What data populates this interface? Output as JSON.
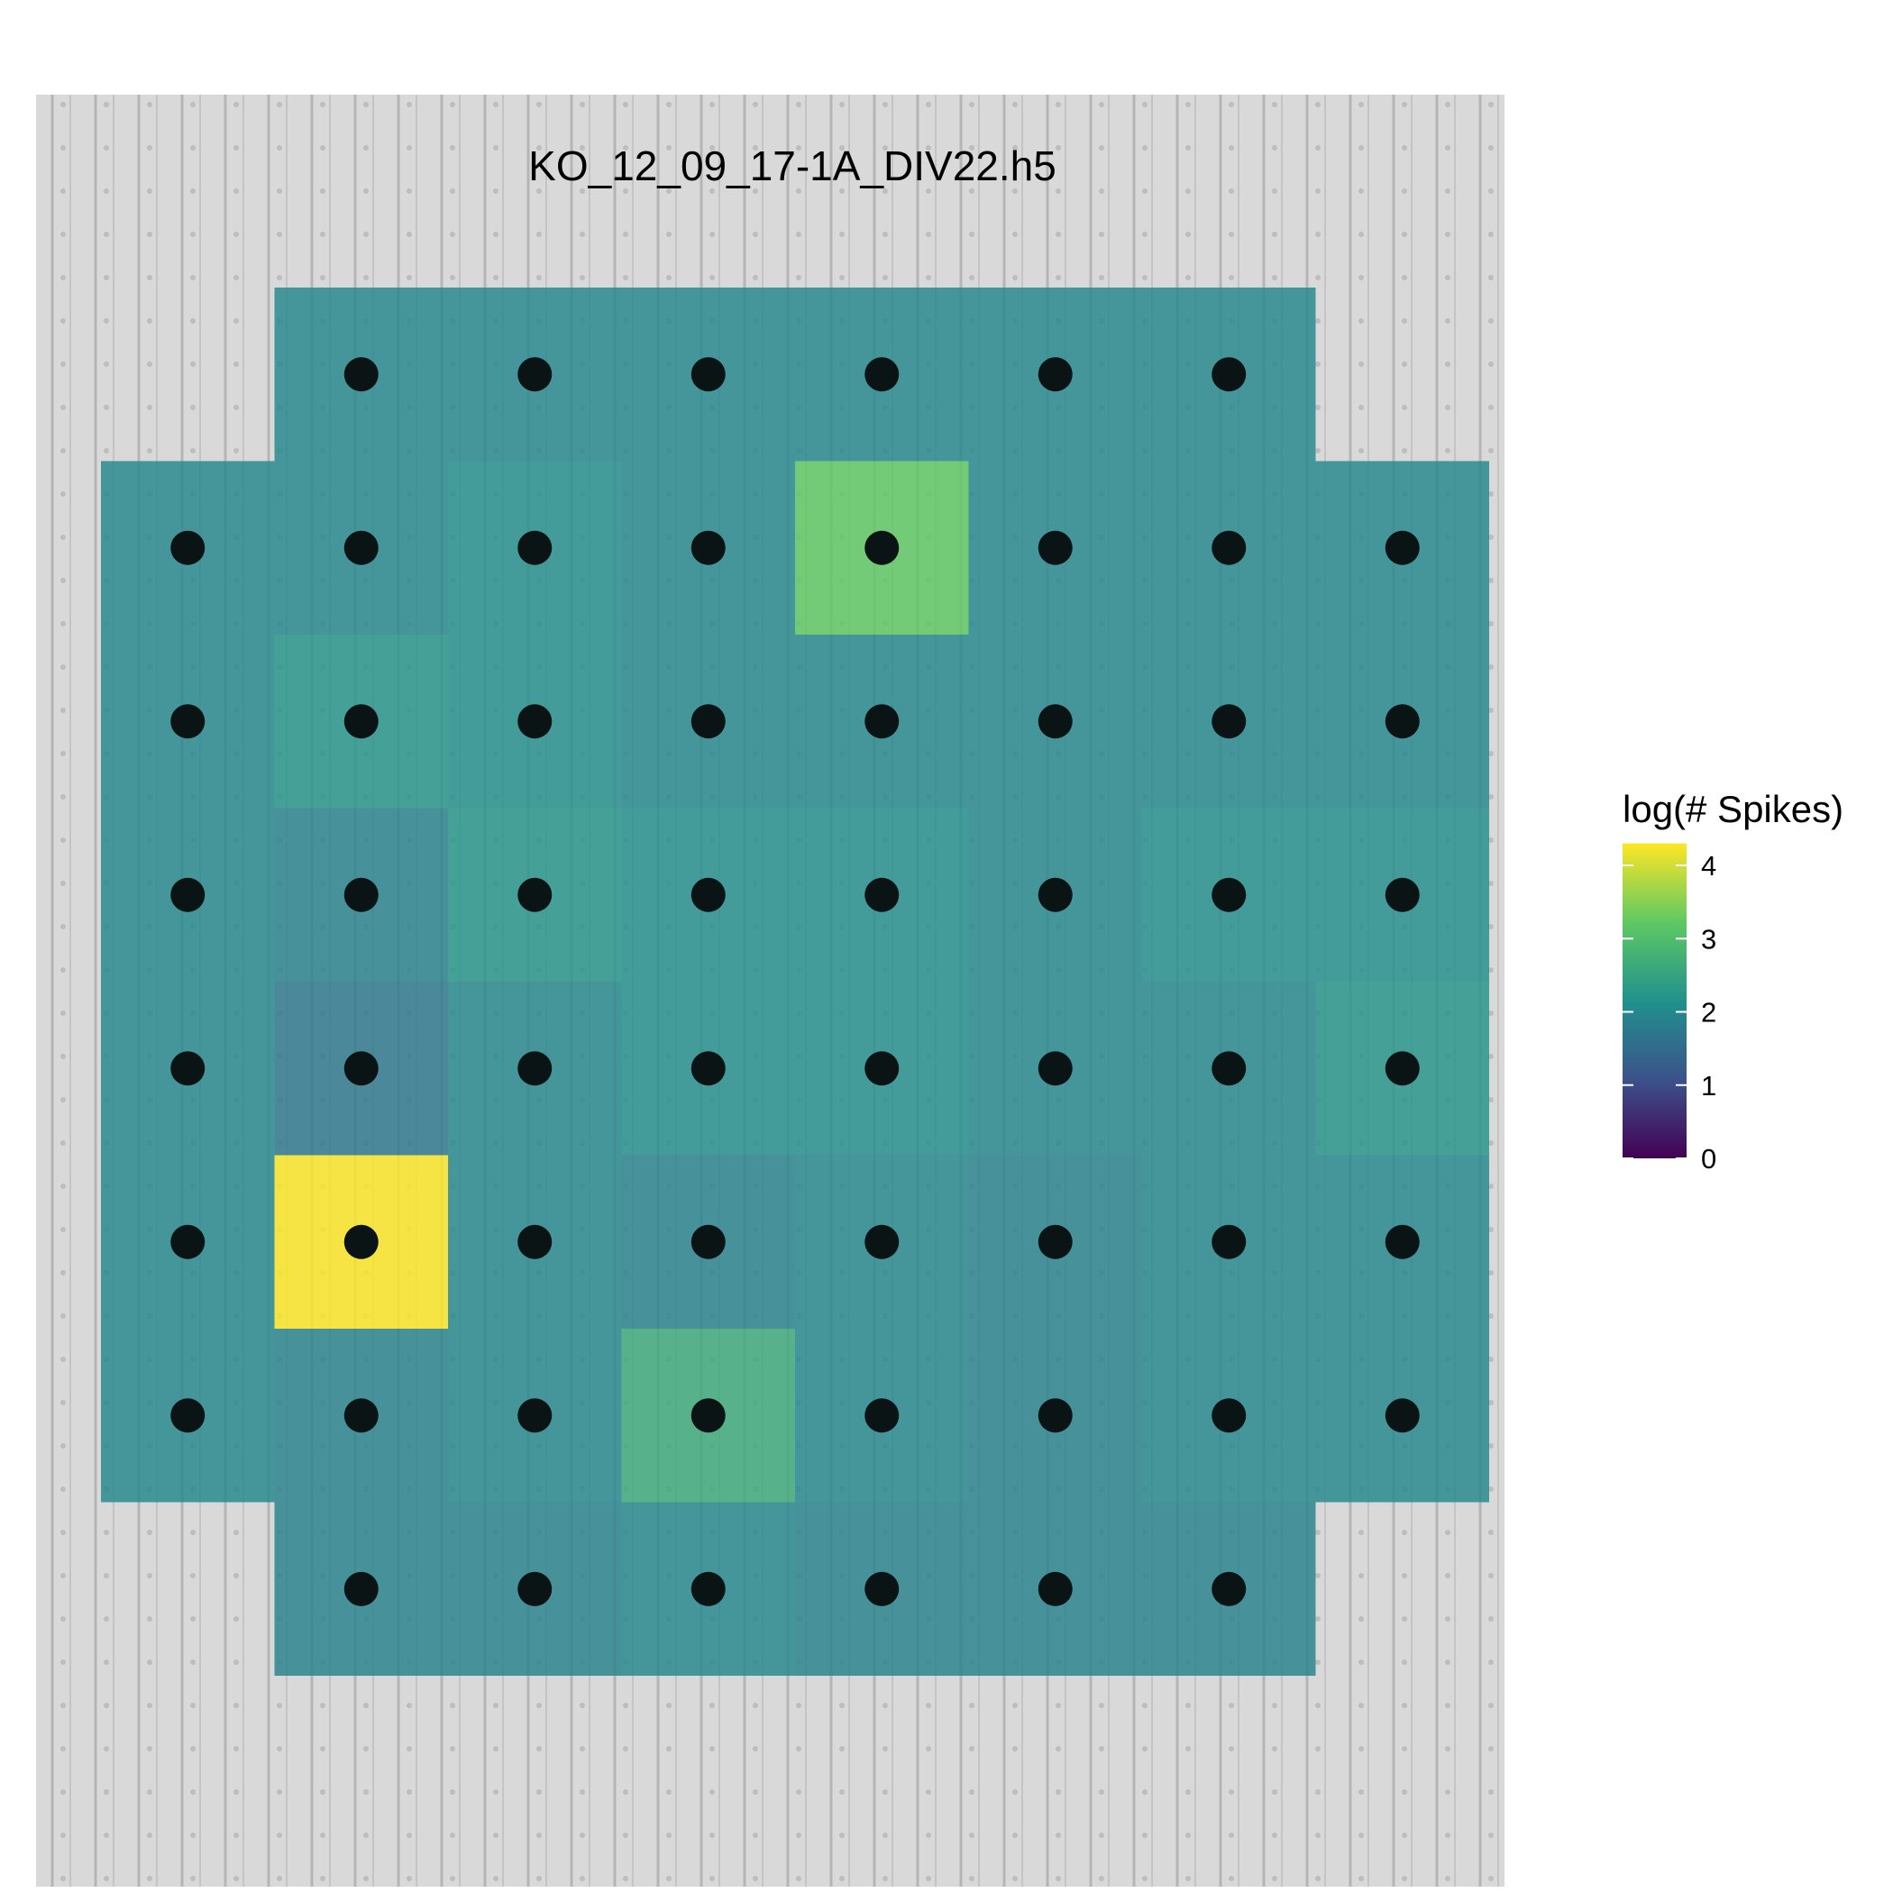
{
  "chart_data": {
    "type": "heatmap",
    "title": "KO_12_09_17-1A_DIV22.h5",
    "legend_title": "log(# Spikes)",
    "colormap": [
      "#440154",
      "#3b528b",
      "#21918c",
      "#5ec962",
      "#fde725"
    ],
    "values": [
      [
        null,
        2.0,
        2.0,
        2.0,
        2.0,
        2.0,
        2.0,
        null
      ],
      [
        2.0,
        2.0,
        2.1,
        2.0,
        3.2,
        2.0,
        2.0,
        2.0
      ],
      [
        2.0,
        2.2,
        2.1,
        2.0,
        2.0,
        2.0,
        2.0,
        2.0
      ],
      [
        2.0,
        1.9,
        2.2,
        2.1,
        2.1,
        2.0,
        2.1,
        2.1
      ],
      [
        2.0,
        1.7,
        2.0,
        2.1,
        2.1,
        2.0,
        2.0,
        2.2
      ],
      [
        2.0,
        4.3,
        2.0,
        1.9,
        2.0,
        1.9,
        2.0,
        2.0
      ],
      [
        2.0,
        1.9,
        2.0,
        2.6,
        2.0,
        1.9,
        2.0,
        2.0
      ],
      [
        null,
        1.9,
        1.9,
        2.0,
        1.9,
        1.9,
        1.9,
        null
      ]
    ],
    "zlim": [
      0,
      4.3
    ],
    "zticks": [
      0,
      1,
      2,
      3,
      4
    ]
  }
}
